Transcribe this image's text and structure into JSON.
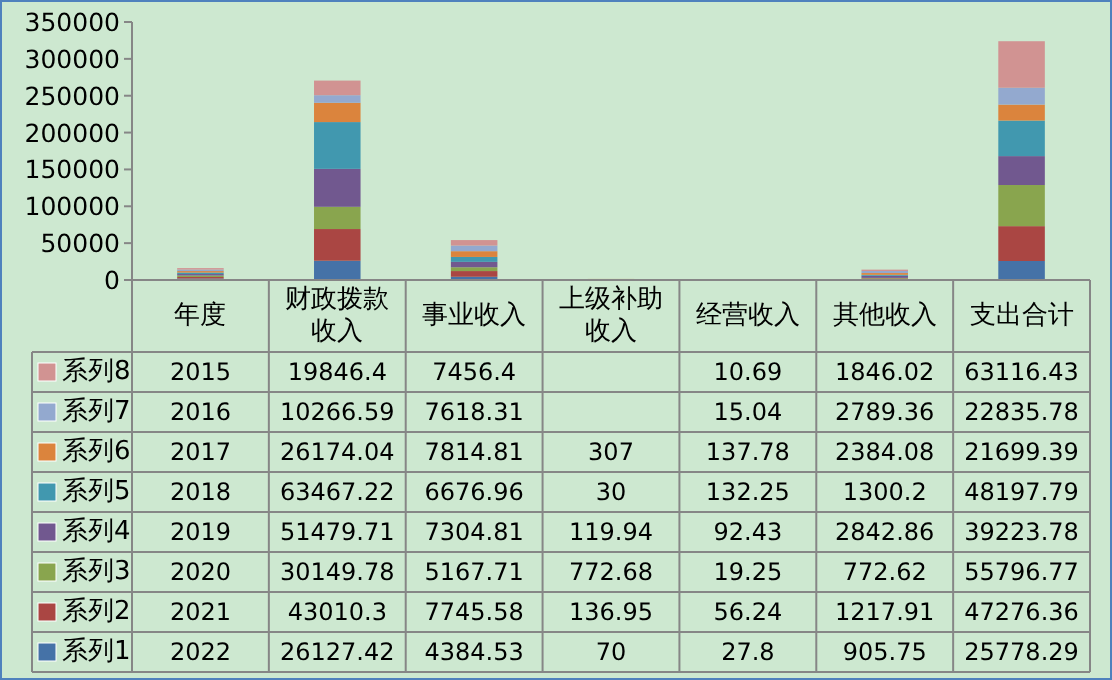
{
  "chart_data": {
    "type": "bar",
    "stacked": true,
    "data_labels": true,
    "legend": "left",
    "ylim": [
      0,
      350000
    ],
    "yticks": [
      0,
      50000,
      100000,
      150000,
      200000,
      250000,
      300000,
      350000
    ],
    "categories": [
      "年度",
      "财政拨款收入",
      "事业收入",
      "上级补助收入",
      "经营收入",
      "其他收入",
      "支出合计"
    ],
    "series": [
      {
        "name": "系列1",
        "color": "#4572a7",
        "values": [
          2022,
          26127.42,
          4384.53,
          70,
          27.8,
          905.75,
          25778.29
        ]
      },
      {
        "name": "系列2",
        "color": "#aa4643",
        "values": [
          2021,
          43010.3,
          7745.58,
          136.95,
          56.24,
          1217.91,
          47276.36
        ]
      },
      {
        "name": "系列3",
        "color": "#89a54e",
        "values": [
          2020,
          30149.78,
          5167.71,
          772.68,
          19.25,
          772.62,
          55796.77
        ]
      },
      {
        "name": "系列4",
        "color": "#71588f",
        "values": [
          2019,
          51479.71,
          7304.81,
          119.94,
          92.43,
          2842.86,
          39223.78
        ]
      },
      {
        "name": "系列5",
        "color": "#4198af",
        "values": [
          2018,
          63467.22,
          6676.96,
          30,
          132.25,
          1300.2,
          48197.79
        ]
      },
      {
        "name": "系列6",
        "color": "#db843d",
        "values": [
          2017,
          26174.04,
          7814.81,
          307,
          137.78,
          2384.08,
          21699.39
        ]
      },
      {
        "name": "系列7",
        "color": "#93a9cf",
        "values": [
          2016,
          10266.59,
          7618.31,
          null,
          15.04,
          2789.36,
          22835.78
        ]
      },
      {
        "name": "系列8",
        "color": "#d19392",
        "values": [
          2015,
          19846.4,
          7456.4,
          null,
          10.69,
          1846.02,
          63116.43
        ]
      }
    ]
  }
}
